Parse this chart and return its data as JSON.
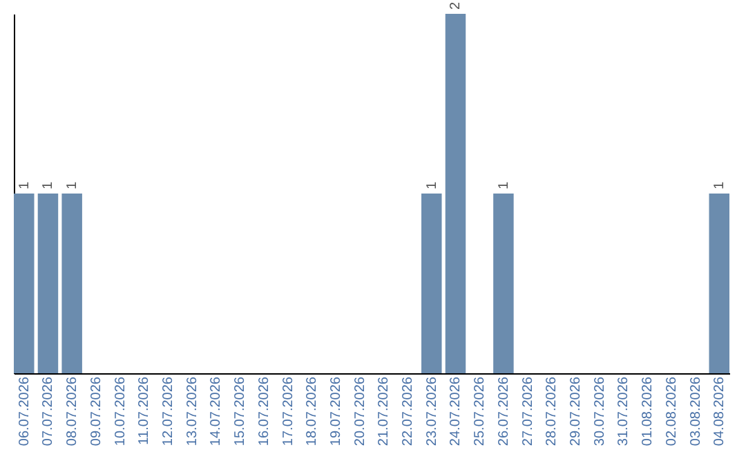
{
  "chart_data": {
    "type": "bar",
    "categories": [
      "06.07.2026",
      "07.07.2026",
      "08.07.2026",
      "09.07.2026",
      "10.07.2026",
      "11.07.2026",
      "12.07.2026",
      "13.07.2026",
      "14.07.2026",
      "15.07.2026",
      "16.07.2026",
      "17.07.2026",
      "18.07.2026",
      "19.07.2026",
      "20.07.2026",
      "21.07.2026",
      "22.07.2026",
      "23.07.2026",
      "24.07.2026",
      "25.07.2026",
      "26.07.2026",
      "27.07.2026",
      "28.07.2026",
      "29.07.2026",
      "30.07.2026",
      "31.07.2026",
      "01.08.2026",
      "02.08.2026",
      "03.08.2026",
      "04.08.2026"
    ],
    "values": [
      1,
      1,
      1,
      0,
      0,
      0,
      0,
      0,
      0,
      0,
      0,
      0,
      0,
      0,
      0,
      0,
      0,
      1,
      2,
      0,
      1,
      0,
      0,
      0,
      0,
      0,
      0,
      0,
      0,
      1
    ],
    "value_labels": [
      "1",
      "1",
      "1",
      null,
      null,
      null,
      null,
      null,
      null,
      null,
      null,
      null,
      null,
      null,
      null,
      null,
      null,
      "1",
      "2",
      null,
      "1",
      null,
      null,
      null,
      null,
      null,
      null,
      null,
      null,
      "1"
    ],
    "color": "#6b8cae",
    "tick_labels": "x"
  }
}
